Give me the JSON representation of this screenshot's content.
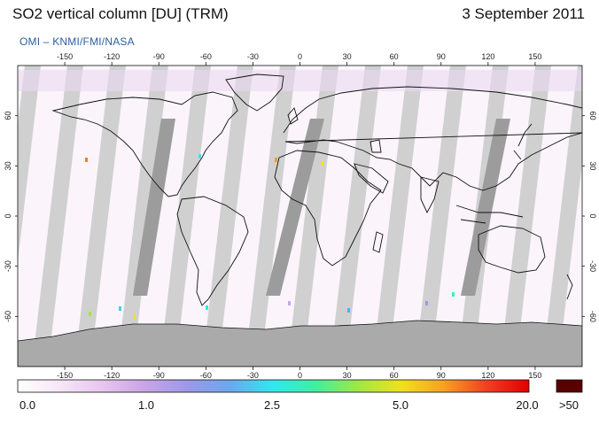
{
  "header": {
    "title": "SO2 vertical column [DU] (TRM)",
    "date": "3 September 2011",
    "source": "OMI  –  KNMI/FMI/NASA"
  },
  "map": {
    "projection": "equirectangular",
    "lon_ticks": [
      "-150",
      "-120",
      "-90",
      "-60",
      "-30",
      "0",
      "30",
      "60",
      "90",
      "120",
      "150"
    ],
    "lat_ticks": [
      "60",
      "30",
      "0",
      "-30",
      "-60"
    ],
    "colors": {
      "background": "#fbf5fb",
      "swath_gap": "#d0d0d0",
      "swath_dark": "#9c9c9c",
      "coast": "#111111",
      "antarctic": "#aaaaaa"
    }
  },
  "colorbar": {
    "labels": [
      "0.0",
      "1.0",
      "2.5",
      "5.0",
      "20.0",
      ">50"
    ],
    "stops": [
      "#ffffff",
      "#f6e6f8",
      "#e8c4ef",
      "#c8a4e8",
      "#9c98ea",
      "#6aa8f0",
      "#30e8f0",
      "#40f0a0",
      "#a0e840",
      "#f0e020",
      "#f8a020",
      "#f04020",
      "#e00000"
    ],
    "overflow_color": "#5a0000"
  }
}
